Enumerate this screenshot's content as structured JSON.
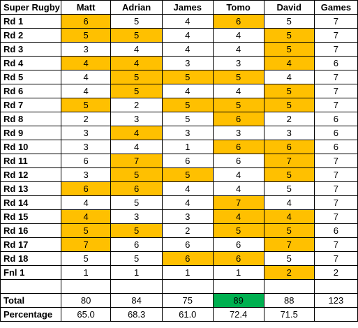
{
  "header": {
    "corner": "Super Rugby",
    "players": [
      "Matt",
      "Adrian",
      "James",
      "Tomo",
      "David"
    ],
    "games": "Games"
  },
  "colors": {
    "highlight": "#ffc000",
    "top_total": "#00b050"
  },
  "rows": [
    {
      "label": "Rd 1",
      "scores": [
        "6",
        "5",
        "4",
        "6",
        "5"
      ],
      "hl": [
        1,
        0,
        0,
        1,
        0
      ],
      "games": "7"
    },
    {
      "label": "Rd 2",
      "scores": [
        "5",
        "5",
        "4",
        "4",
        "5"
      ],
      "hl": [
        1,
        1,
        0,
        0,
        1
      ],
      "games": "7"
    },
    {
      "label": "Rd 3",
      "scores": [
        "3",
        "4",
        "4",
        "4",
        "5"
      ],
      "hl": [
        0,
        0,
        0,
        0,
        1
      ],
      "games": "7"
    },
    {
      "label": "Rd 4",
      "scores": [
        "4",
        "4",
        "3",
        "3",
        "4"
      ],
      "hl": [
        1,
        1,
        0,
        0,
        1
      ],
      "games": "6"
    },
    {
      "label": "Rd 5",
      "scores": [
        "4",
        "5",
        "5",
        "5",
        "4"
      ],
      "hl": [
        0,
        1,
        1,
        1,
        0
      ],
      "games": "7"
    },
    {
      "label": "Rd 6",
      "scores": [
        "4",
        "5",
        "4",
        "4",
        "5"
      ],
      "hl": [
        0,
        1,
        0,
        0,
        1
      ],
      "games": "7"
    },
    {
      "label": "Rd 7",
      "scores": [
        "5",
        "2",
        "5",
        "5",
        "5"
      ],
      "hl": [
        1,
        0,
        1,
        1,
        1
      ],
      "games": "7"
    },
    {
      "label": "Rd 8",
      "scores": [
        "2",
        "3",
        "5",
        "6",
        "2"
      ],
      "hl": [
        0,
        0,
        0,
        1,
        0
      ],
      "games": "6"
    },
    {
      "label": "Rd 9",
      "scores": [
        "3",
        "4",
        "3",
        "3",
        "3"
      ],
      "hl": [
        0,
        1,
        0,
        0,
        0
      ],
      "games": "6"
    },
    {
      "label": "Rd 10",
      "scores": [
        "3",
        "4",
        "1",
        "6",
        "6"
      ],
      "hl": [
        0,
        0,
        0,
        1,
        1
      ],
      "games": "6"
    },
    {
      "label": "Rd 11",
      "scores": [
        "6",
        "7",
        "6",
        "6",
        "7"
      ],
      "hl": [
        0,
        1,
        0,
        0,
        1
      ],
      "games": "7"
    },
    {
      "label": "Rd 12",
      "scores": [
        "3",
        "5",
        "5",
        "4",
        "5"
      ],
      "hl": [
        0,
        1,
        1,
        0,
        1
      ],
      "games": "7"
    },
    {
      "label": "Rd 13",
      "scores": [
        "6",
        "6",
        "4",
        "4",
        "5"
      ],
      "hl": [
        1,
        1,
        0,
        0,
        0
      ],
      "games": "7"
    },
    {
      "label": "Rd 14",
      "scores": [
        "4",
        "5",
        "4",
        "7",
        "4"
      ],
      "hl": [
        0,
        0,
        0,
        1,
        0
      ],
      "games": "7"
    },
    {
      "label": "Rd 15",
      "scores": [
        "4",
        "3",
        "3",
        "4",
        "4"
      ],
      "hl": [
        1,
        0,
        0,
        1,
        1
      ],
      "games": "7"
    },
    {
      "label": "Rd 16",
      "scores": [
        "5",
        "5",
        "2",
        "5",
        "5"
      ],
      "hl": [
        1,
        1,
        0,
        1,
        1
      ],
      "games": "6"
    },
    {
      "label": "Rd 17",
      "scores": [
        "7",
        "6",
        "6",
        "6",
        "7"
      ],
      "hl": [
        1,
        0,
        0,
        0,
        1
      ],
      "games": "7"
    },
    {
      "label": "Rd 18",
      "scores": [
        "5",
        "5",
        "6",
        "6",
        "5"
      ],
      "hl": [
        0,
        0,
        1,
        1,
        0
      ],
      "games": "7"
    },
    {
      "label": "Fnl 1",
      "scores": [
        "1",
        "1",
        "1",
        "1",
        "2"
      ],
      "hl": [
        0,
        0,
        0,
        0,
        1
      ],
      "games": "2"
    }
  ],
  "total": {
    "label": "Total",
    "scores": [
      "80",
      "84",
      "75",
      "89",
      "88"
    ],
    "best": [
      0,
      0,
      0,
      1,
      0
    ],
    "games": "123"
  },
  "percentage": {
    "label": "Percentage",
    "scores": [
      "65.0",
      "68.3",
      "61.0",
      "72.4",
      "71.5"
    ]
  }
}
